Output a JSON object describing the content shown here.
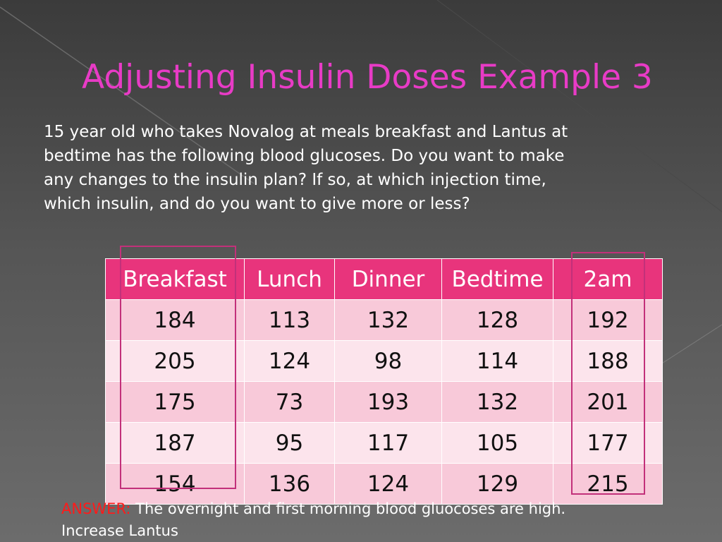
{
  "slide": {
    "title": "Adjusting Insulin Doses Example 3",
    "question_lines": [
      "15 year old who takes  Novalog at meals breakfast and Lantus at",
      "bedtime has the following blood glucoses.  Do you want to make",
      "any changes to the  insulin plan? If so,  at  which injection time,",
      "which insulin, and do you want to give more or less?"
    ]
  },
  "table": {
    "headers": [
      "Breakfast",
      "Lunch",
      "Dinner",
      "Bedtime",
      "2am"
    ],
    "rows": [
      [
        "184",
        "113",
        "132",
        "128",
        "192"
      ],
      [
        "205",
        "124",
        "98",
        "114",
        "188"
      ],
      [
        "175",
        "73",
        "193",
        "132",
        "201"
      ],
      [
        "187",
        "95",
        "117",
        "105",
        "177"
      ],
      [
        "154",
        "136",
        "124",
        "129",
        "215"
      ]
    ]
  },
  "answer": {
    "label": "ANSWER:",
    "text_line1": " The overnight and first morning blood gluocoses are high.",
    "text_line2": "Increase Lantus"
  },
  "colors": {
    "title": "#e83bc6",
    "header_row": "#e8347c",
    "row_dark": "#f8c9d9",
    "row_light": "#fce4ec",
    "highlight_box": "#c2307a",
    "answer_label": "#ff1a1a"
  }
}
